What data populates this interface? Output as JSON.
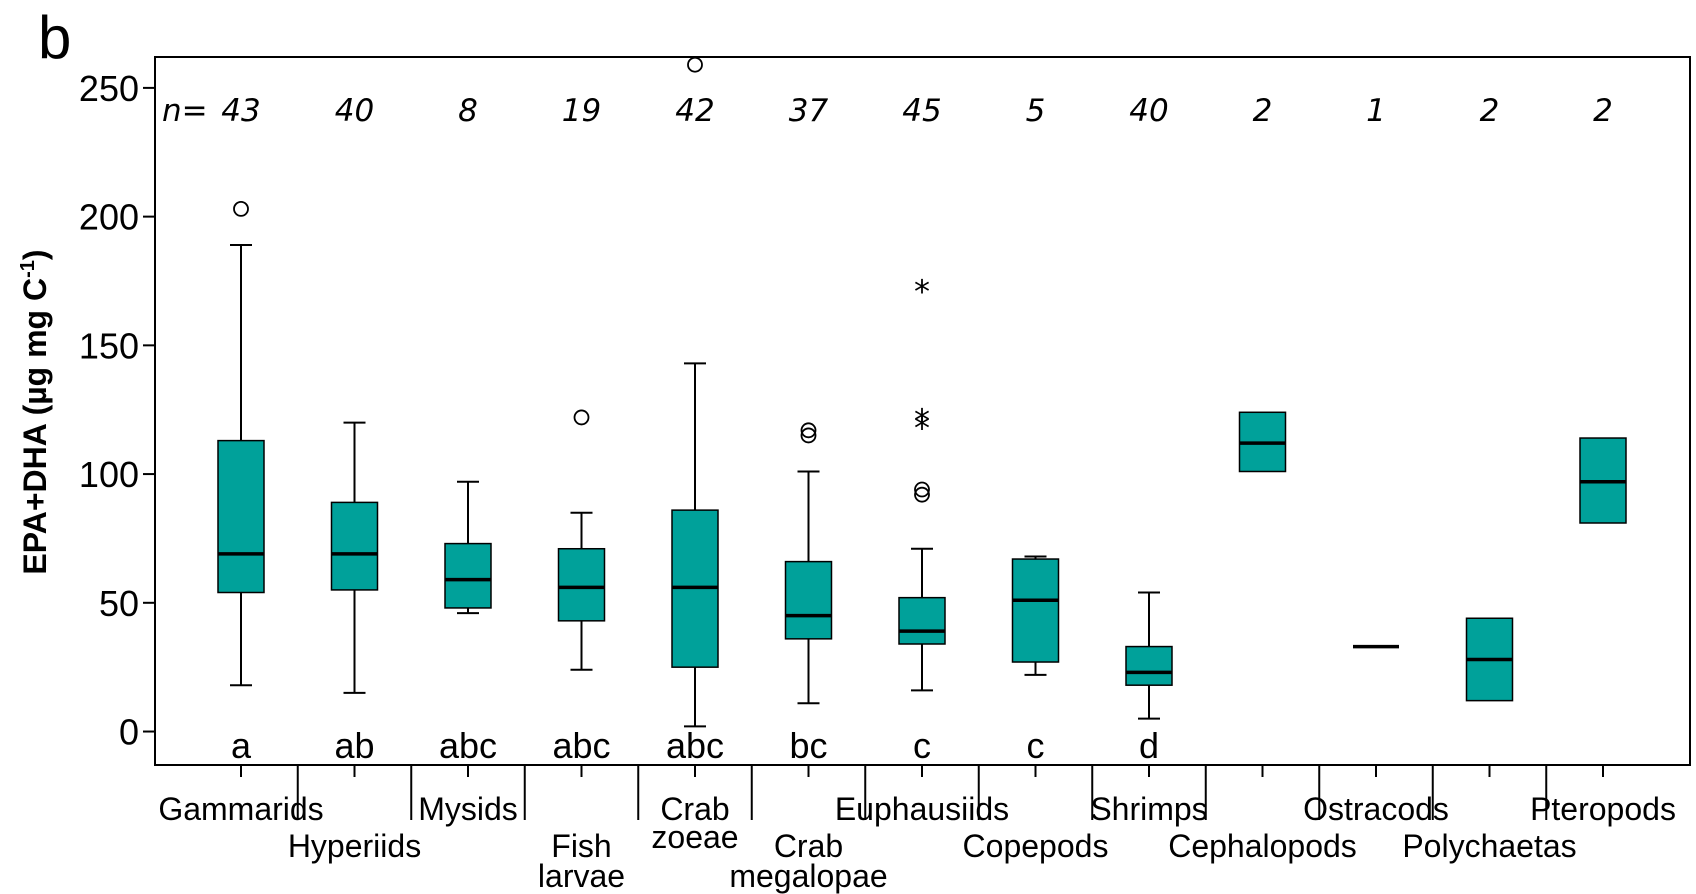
{
  "panel_label": "b",
  "chart_data": {
    "type": "box",
    "ylabel": "EPA+DHA (µg mg C",
    "ylabel_sup": "-1",
    "ylabel_close": ")",
    "ylim": [
      -13,
      262
    ],
    "yticks": [
      0,
      50,
      100,
      150,
      200,
      250
    ],
    "n_prefix": "n=",
    "box_color": "#00a19a",
    "categories": [
      {
        "label": [
          "Gammarids"
        ],
        "row": 0,
        "n": "43",
        "sig": "a",
        "q1": 54,
        "median": 69,
        "q3": 113,
        "lo": 18,
        "hi": 189,
        "outliers": [
          203
        ],
        "extremes": []
      },
      {
        "label": [
          "Hyperiids"
        ],
        "row": 1,
        "n": "40",
        "sig": "ab",
        "q1": 55,
        "median": 69,
        "q3": 89,
        "lo": 15,
        "hi": 120,
        "outliers": [],
        "extremes": []
      },
      {
        "label": [
          "Mysids"
        ],
        "row": 0,
        "n": "8",
        "sig": "abc",
        "q1": 48,
        "median": 59,
        "q3": 73,
        "lo": 46,
        "hi": 97,
        "outliers": [],
        "extremes": []
      },
      {
        "label": [
          "Fish",
          "larvae"
        ],
        "row": 1,
        "n": "19",
        "sig": "abc",
        "q1": 43,
        "median": 56,
        "q3": 71,
        "lo": 24,
        "hi": 85,
        "outliers": [
          122
        ],
        "extremes": []
      },
      {
        "label": [
          "Crab",
          "zoeae"
        ],
        "row": 0,
        "n": "42",
        "sig": "abc",
        "q1": 25,
        "median": 56,
        "q3": 86,
        "lo": 2,
        "hi": 143,
        "outliers": [
          259
        ],
        "extremes": []
      },
      {
        "label": [
          "Crab",
          "megalopae"
        ],
        "row": 1,
        "n": "37",
        "sig": "bc",
        "q1": 36,
        "median": 45,
        "q3": 66,
        "lo": 11,
        "hi": 101,
        "outliers": [
          115,
          117
        ],
        "extremes": []
      },
      {
        "label": [
          "Euphausiids"
        ],
        "row": 0,
        "n": "45",
        "sig": "c",
        "q1": 34,
        "median": 39,
        "q3": 52,
        "lo": 16,
        "hi": 71,
        "outliers": [
          92,
          94
        ],
        "extremes": [
          119,
          122,
          172
        ]
      },
      {
        "label": [
          "Copepods"
        ],
        "row": 1,
        "n": "5",
        "sig": "c",
        "q1": 27,
        "median": 51,
        "q3": 67,
        "lo": 22,
        "hi": 68,
        "outliers": [],
        "extremes": []
      },
      {
        "label": [
          "Shrimps"
        ],
        "row": 0,
        "n": "40",
        "sig": "d",
        "q1": 18,
        "median": 23,
        "q3": 33,
        "lo": 5,
        "hi": 54,
        "outliers": [],
        "extremes": []
      },
      {
        "label": [
          "Cephalopods"
        ],
        "row": 1,
        "n": "2",
        "sig": "",
        "q1": 101,
        "median": 112,
        "q3": 124,
        "lo": null,
        "hi": null,
        "outliers": [],
        "extremes": []
      },
      {
        "label": [
          "Ostracods"
        ],
        "row": 0,
        "n": "1",
        "sig": "",
        "q1": 33,
        "median": 33,
        "q3": 33,
        "lo": null,
        "hi": null,
        "outliers": [],
        "extremes": []
      },
      {
        "label": [
          "Polychaetas"
        ],
        "row": 1,
        "n": "2",
        "sig": "",
        "q1": 12,
        "median": 28,
        "q3": 44,
        "lo": null,
        "hi": null,
        "outliers": [],
        "extremes": []
      },
      {
        "label": [
          "Pteropods"
        ],
        "row": 0,
        "n": "2",
        "sig": "",
        "q1": 81,
        "median": 97,
        "q3": 114,
        "lo": null,
        "hi": null,
        "outliers": [],
        "extremes": []
      }
    ]
  }
}
